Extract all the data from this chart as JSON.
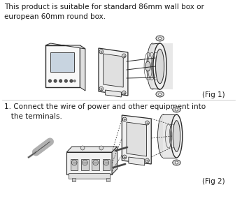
{
  "bg_color": "#ffffff",
  "text1": "This product is suitable for standard 86mm wall box or\neuropean 60mm round box.",
  "text2": "1. Connect the wire of power and other equipment into\n   the terminals.",
  "fig1_label": "(Fig 1)",
  "fig2_label": "(Fig 2)",
  "text_color": "#1a1a1a",
  "line_color": "#2a2a2a",
  "font_size_main": 7.5,
  "fig_label_size": 7.5
}
